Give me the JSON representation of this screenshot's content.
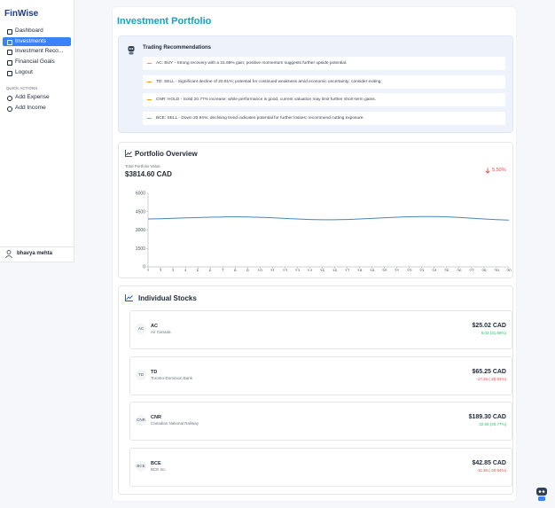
{
  "sidebar": {
    "brand": "FinWise",
    "nav": [
      "Dashboard",
      "Investments",
      "Investment Reco...",
      "Financial Goals",
      "Logout"
    ],
    "active": 1,
    "quick_actions_title": "QUICK ACTIONS",
    "quick_actions": [
      "Add Expense",
      "Add Income"
    ],
    "user": "bhavya mehta"
  },
  "page_title": "Investment Portfolio",
  "recommendations": {
    "title": "Trading Recommendations",
    "items": [
      "AC: BUY - Strong recovery with a 31.68% gain; positive momentum suggests further upside potential.",
      "TD: SELL - Significant decline of 20.81%; potential for continued weakness amid economic uncertainty; consider exiting.",
      "CNR: HOLD - Solid 20.77% increase; while performance is good, current valuation may limit further short-term gains.",
      "BCE: SELL - Down 20.94%; declining trend indicates potential for further losses; recommend cutting exposure."
    ]
  },
  "portfolio": {
    "title": "Portfolio Overview",
    "total_label": "Total Portfolio Value",
    "total_value": "$3814.60 CAD",
    "change": "5.50%",
    "chart": {
      "type": "line",
      "color": "#4a86b8",
      "x": [
        1,
        2,
        3,
        4,
        5,
        6,
        7,
        8,
        9,
        10,
        11,
        12,
        13,
        14,
        15,
        16,
        17,
        18,
        19,
        20,
        21,
        22,
        23,
        24,
        25,
        26,
        27,
        28,
        29,
        30
      ],
      "values": [
        3900,
        3920,
        3960,
        3990,
        4020,
        4050,
        4070,
        4080,
        4070,
        4040,
        4000,
        3950,
        3900,
        3860,
        3840,
        3840,
        3860,
        3900,
        3950,
        4000,
        4050,
        4080,
        4100,
        4100,
        4080,
        4030,
        3970,
        3900,
        3850,
        3814.6
      ],
      "xlim": [
        1,
        30
      ],
      "ylim": [
        0,
        6000
      ],
      "yticks": [
        0,
        1500,
        3000,
        4500,
        6000
      ]
    }
  },
  "stocks": {
    "title": "Individual Stocks",
    "items": [
      {
        "symbol": "AC",
        "name": "Air Canada",
        "price": "$25.02 CAD",
        "change": "6.02 (31.68%)",
        "trend": "up"
      },
      {
        "symbol": "TD",
        "name": "Toronto-Dominion Bank",
        "price": "$65.25 CAD",
        "change": "-17.25 (-20.81%)",
        "trend": "down"
      },
      {
        "symbol": "CNR",
        "name": "Canadian National Railway",
        "price": "$189.30 CAD",
        "change": "32.55 (20.77%)",
        "trend": "up"
      },
      {
        "symbol": "BCE",
        "name": "BCE Inc.",
        "price": "$42.85 CAD",
        "change": "-11.35 (-20.94%)",
        "trend": "down"
      }
    ]
  }
}
